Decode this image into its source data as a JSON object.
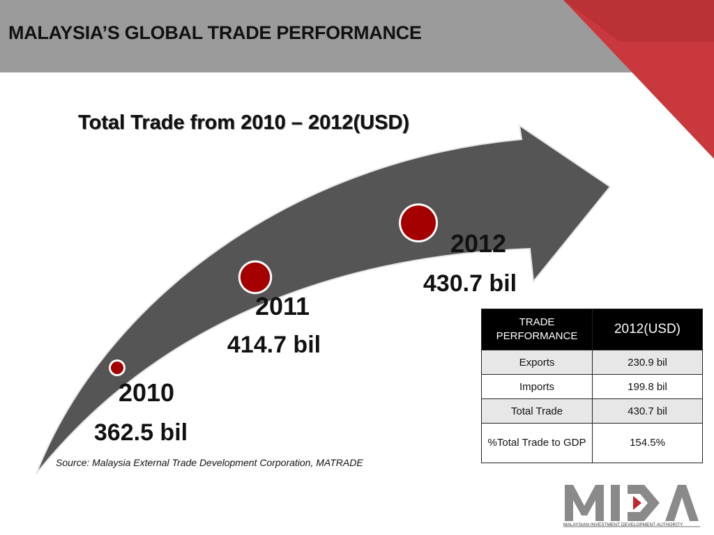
{
  "header": {
    "title": "MALAYSIA’S GLOBAL TRADE PERFORMANCE"
  },
  "colors": {
    "header_bg": "#9b9b9b",
    "arrow": "#555555",
    "marker": "#a50000",
    "accent_red": "#c0272d"
  },
  "chart_data": {
    "type": "line",
    "title": "Total Trade from 2010 – 2012(USD)",
    "categories": [
      "2010",
      "2011",
      "2012"
    ],
    "series": [
      {
        "values": [
          362.5,
          414.7,
          430.7
        ]
      }
    ],
    "value_labels": [
      "362.5 bil",
      "414.7 bil",
      "430.7 bil"
    ],
    "unit": "bil",
    "xlabel": "",
    "ylabel": ""
  },
  "source": {
    "text": "Source:  Malaysia External Trade Development Corporation, MATRADE"
  },
  "table": {
    "headers": [
      "TRADE PERFORMANCE",
      "2012(USD)"
    ],
    "rows": [
      {
        "label": "Exports",
        "value": "230.9 bil"
      },
      {
        "label": "Imports",
        "value": "199.8 bil"
      },
      {
        "label": "Total Trade",
        "value": "430.7 bil"
      },
      {
        "label": "%Total Trade to GDP",
        "value": "154.5%"
      }
    ]
  },
  "logo": {
    "text": "MIDA",
    "caption": "MALAYSIAN INVESTMENT DEVELOPMENT AUTHORITY"
  }
}
